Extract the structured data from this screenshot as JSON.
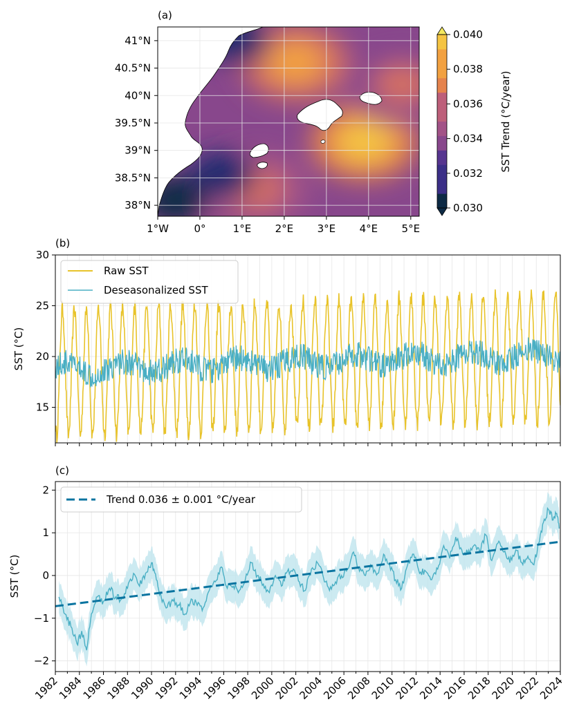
{
  "chart_data": [
    {
      "panel": "(a)",
      "type": "heatmap",
      "title": "",
      "xlabel": "",
      "ylabel": "",
      "x_ticks": [
        "1°W",
        "0°",
        "1°E",
        "2°E",
        "3°E",
        "4°E",
        "5°E"
      ],
      "y_ticks": [
        "41°N",
        "40.5°N",
        "40°N",
        "39.5°N",
        "39°N",
        "38.5°N",
        "38°N"
      ],
      "xlim": [
        -1.0,
        5.2
      ],
      "ylim": [
        37.8,
        41.25
      ],
      "colorbar": {
        "label": "SST Trend (°C/year)",
        "ticks": [
          "0.030",
          "0.032",
          "0.034",
          "0.036",
          "0.038",
          "0.040"
        ],
        "range": [
          0.03,
          0.04
        ],
        "levels": 12,
        "colors": [
          "#0d2a45",
          "#1f2c6e",
          "#3b2f87",
          "#56358f",
          "#6f3f8f",
          "#88478c",
          "#a25287",
          "#bd5f7a",
          "#d46f62",
          "#e5834d",
          "#f2a141",
          "#f5c442",
          "#f3e85f"
        ]
      },
      "hotspots": [
        {
          "lon": 3.9,
          "lat": 39.15,
          "value": 0.0395
        },
        {
          "lon": 2.25,
          "lat": 40.6,
          "value": 0.0385
        },
        {
          "lon": 4.8,
          "lat": 40.2,
          "value": 0.0365
        },
        {
          "lon": 1.3,
          "lat": 38.3,
          "value": 0.037
        }
      ],
      "lowzones": [
        {
          "lon": -0.6,
          "lat": 38.1,
          "value": 0.03
        },
        {
          "lon": 0.55,
          "lat": 38.55,
          "value": 0.031
        },
        {
          "lon": 0.9,
          "lat": 41.0,
          "value": 0.031
        }
      ]
    },
    {
      "panel": "(b)",
      "type": "line",
      "title": "",
      "xlabel": "",
      "ylabel": "SST (°C)",
      "ylim": [
        11.5,
        30
      ],
      "xlim": [
        1982,
        2024
      ],
      "y_ticks": [
        "15",
        "20",
        "25",
        "30"
      ],
      "series": [
        {
          "name": "Raw SST",
          "color": "#e8c32a",
          "mean": 19.2,
          "amplitude": 6.2,
          "trend_per_year": 0.036
        },
        {
          "name": "Deseasonalized SST",
          "color": "#4aafc4",
          "mean": 18.7,
          "trend_per_year": 0.036
        }
      ],
      "legend": "top-left"
    },
    {
      "panel": "(c)",
      "type": "line",
      "title": "",
      "xlabel": "",
      "ylabel": "SST (°C)",
      "ylim": [
        -2.25,
        2.2
      ],
      "xlim": [
        1982,
        2024
      ],
      "y_ticks": [
        "2",
        "1",
        "0",
        "−1",
        "−2"
      ],
      "x_ticks": [
        "1982",
        "1984",
        "1986",
        "1988",
        "1990",
        "1992",
        "1994",
        "1996",
        "1998",
        "2000",
        "2002",
        "2004",
        "2006",
        "2008",
        "2010",
        "2012",
        "2014",
        "2016",
        "2018",
        "2020",
        "2022",
        "2024"
      ],
      "trend": {
        "name": "Trend 0.036 ± 0.001 °C/year",
        "start": [
          1982,
          -0.72
        ],
        "end": [
          2024,
          0.79
        ],
        "color": "#0a74a0"
      },
      "anomaly_points": [
        [
          1982.3,
          -0.5
        ],
        [
          1982.8,
          -0.9
        ],
        [
          1983.3,
          -1.2
        ],
        [
          1983.8,
          -1.6
        ],
        [
          1984.2,
          -1.3
        ],
        [
          1984.6,
          -1.75
        ],
        [
          1985.0,
          -0.9
        ],
        [
          1985.5,
          -0.5
        ],
        [
          1986.0,
          -0.6
        ],
        [
          1986.5,
          -0.3
        ],
        [
          1987.0,
          -0.5
        ],
        [
          1987.5,
          -0.55
        ],
        [
          1988.0,
          -0.3
        ],
        [
          1988.5,
          0.05
        ],
        [
          1989.0,
          -0.25
        ],
        [
          1989.5,
          0.05
        ],
        [
          1990.0,
          0.3
        ],
        [
          1990.4,
          -0.1
        ],
        [
          1990.8,
          -0.5
        ],
        [
          1991.3,
          -0.75
        ],
        [
          1991.8,
          -0.6
        ],
        [
          1992.3,
          -0.7
        ],
        [
          1992.8,
          -0.9
        ],
        [
          1993.3,
          -0.55
        ],
        [
          1993.8,
          -0.7
        ],
        [
          1994.3,
          -0.75
        ],
        [
          1994.8,
          -0.35
        ],
        [
          1995.3,
          -0.15
        ],
        [
          1995.8,
          0.2
        ],
        [
          1996.3,
          -0.3
        ],
        [
          1996.8,
          -0.25
        ],
        [
          1997.3,
          -0.35
        ],
        [
          1997.8,
          -0.1
        ],
        [
          1998.3,
          0.3
        ],
        [
          1998.8,
          0.0
        ],
        [
          1999.3,
          -0.2
        ],
        [
          1999.8,
          -0.4
        ],
        [
          2000.3,
          0.0
        ],
        [
          2000.8,
          -0.25
        ],
        [
          2001.3,
          0.1
        ],
        [
          2001.8,
          0.15
        ],
        [
          2002.3,
          -0.15
        ],
        [
          2002.8,
          -0.35
        ],
        [
          2003.3,
          0.15
        ],
        [
          2003.8,
          0.3
        ],
        [
          2004.3,
          -0.05
        ],
        [
          2004.8,
          -0.35
        ],
        [
          2005.3,
          -0.15
        ],
        [
          2005.8,
          0.0
        ],
        [
          2006.3,
          0.15
        ],
        [
          2006.8,
          0.55
        ],
        [
          2007.3,
          0.1
        ],
        [
          2007.8,
          0.0
        ],
        [
          2008.3,
          0.2
        ],
        [
          2008.8,
          0.05
        ],
        [
          2009.3,
          0.5
        ],
        [
          2009.8,
          0.25
        ],
        [
          2010.3,
          -0.1
        ],
        [
          2010.8,
          -0.3
        ],
        [
          2011.3,
          0.25
        ],
        [
          2011.8,
          0.5
        ],
        [
          2012.3,
          0.05
        ],
        [
          2012.8,
          0.1
        ],
        [
          2013.3,
          -0.1
        ],
        [
          2013.8,
          0.15
        ],
        [
          2014.3,
          0.7
        ],
        [
          2014.8,
          0.4
        ],
        [
          2015.3,
          0.9
        ],
        [
          2015.8,
          0.6
        ],
        [
          2016.3,
          0.5
        ],
        [
          2016.8,
          0.7
        ],
        [
          2017.3,
          0.55
        ],
        [
          2017.8,
          0.95
        ],
        [
          2018.3,
          0.35
        ],
        [
          2018.8,
          0.75
        ],
        [
          2019.3,
          0.55
        ],
        [
          2019.8,
          0.3
        ],
        [
          2020.3,
          0.6
        ],
        [
          2020.8,
          0.3
        ],
        [
          2021.3,
          0.45
        ],
        [
          2021.8,
          0.25
        ],
        [
          2022.2,
          0.75
        ],
        [
          2022.6,
          1.25
        ],
        [
          2023.0,
          1.55
        ],
        [
          2023.4,
          1.3
        ],
        [
          2023.7,
          1.45
        ],
        [
          2023.9,
          1.1
        ]
      ],
      "band_halfwidth": 0.38,
      "band_color": "#bfe5ee",
      "line_color": "#4aafc4",
      "legend": "top-left"
    }
  ]
}
